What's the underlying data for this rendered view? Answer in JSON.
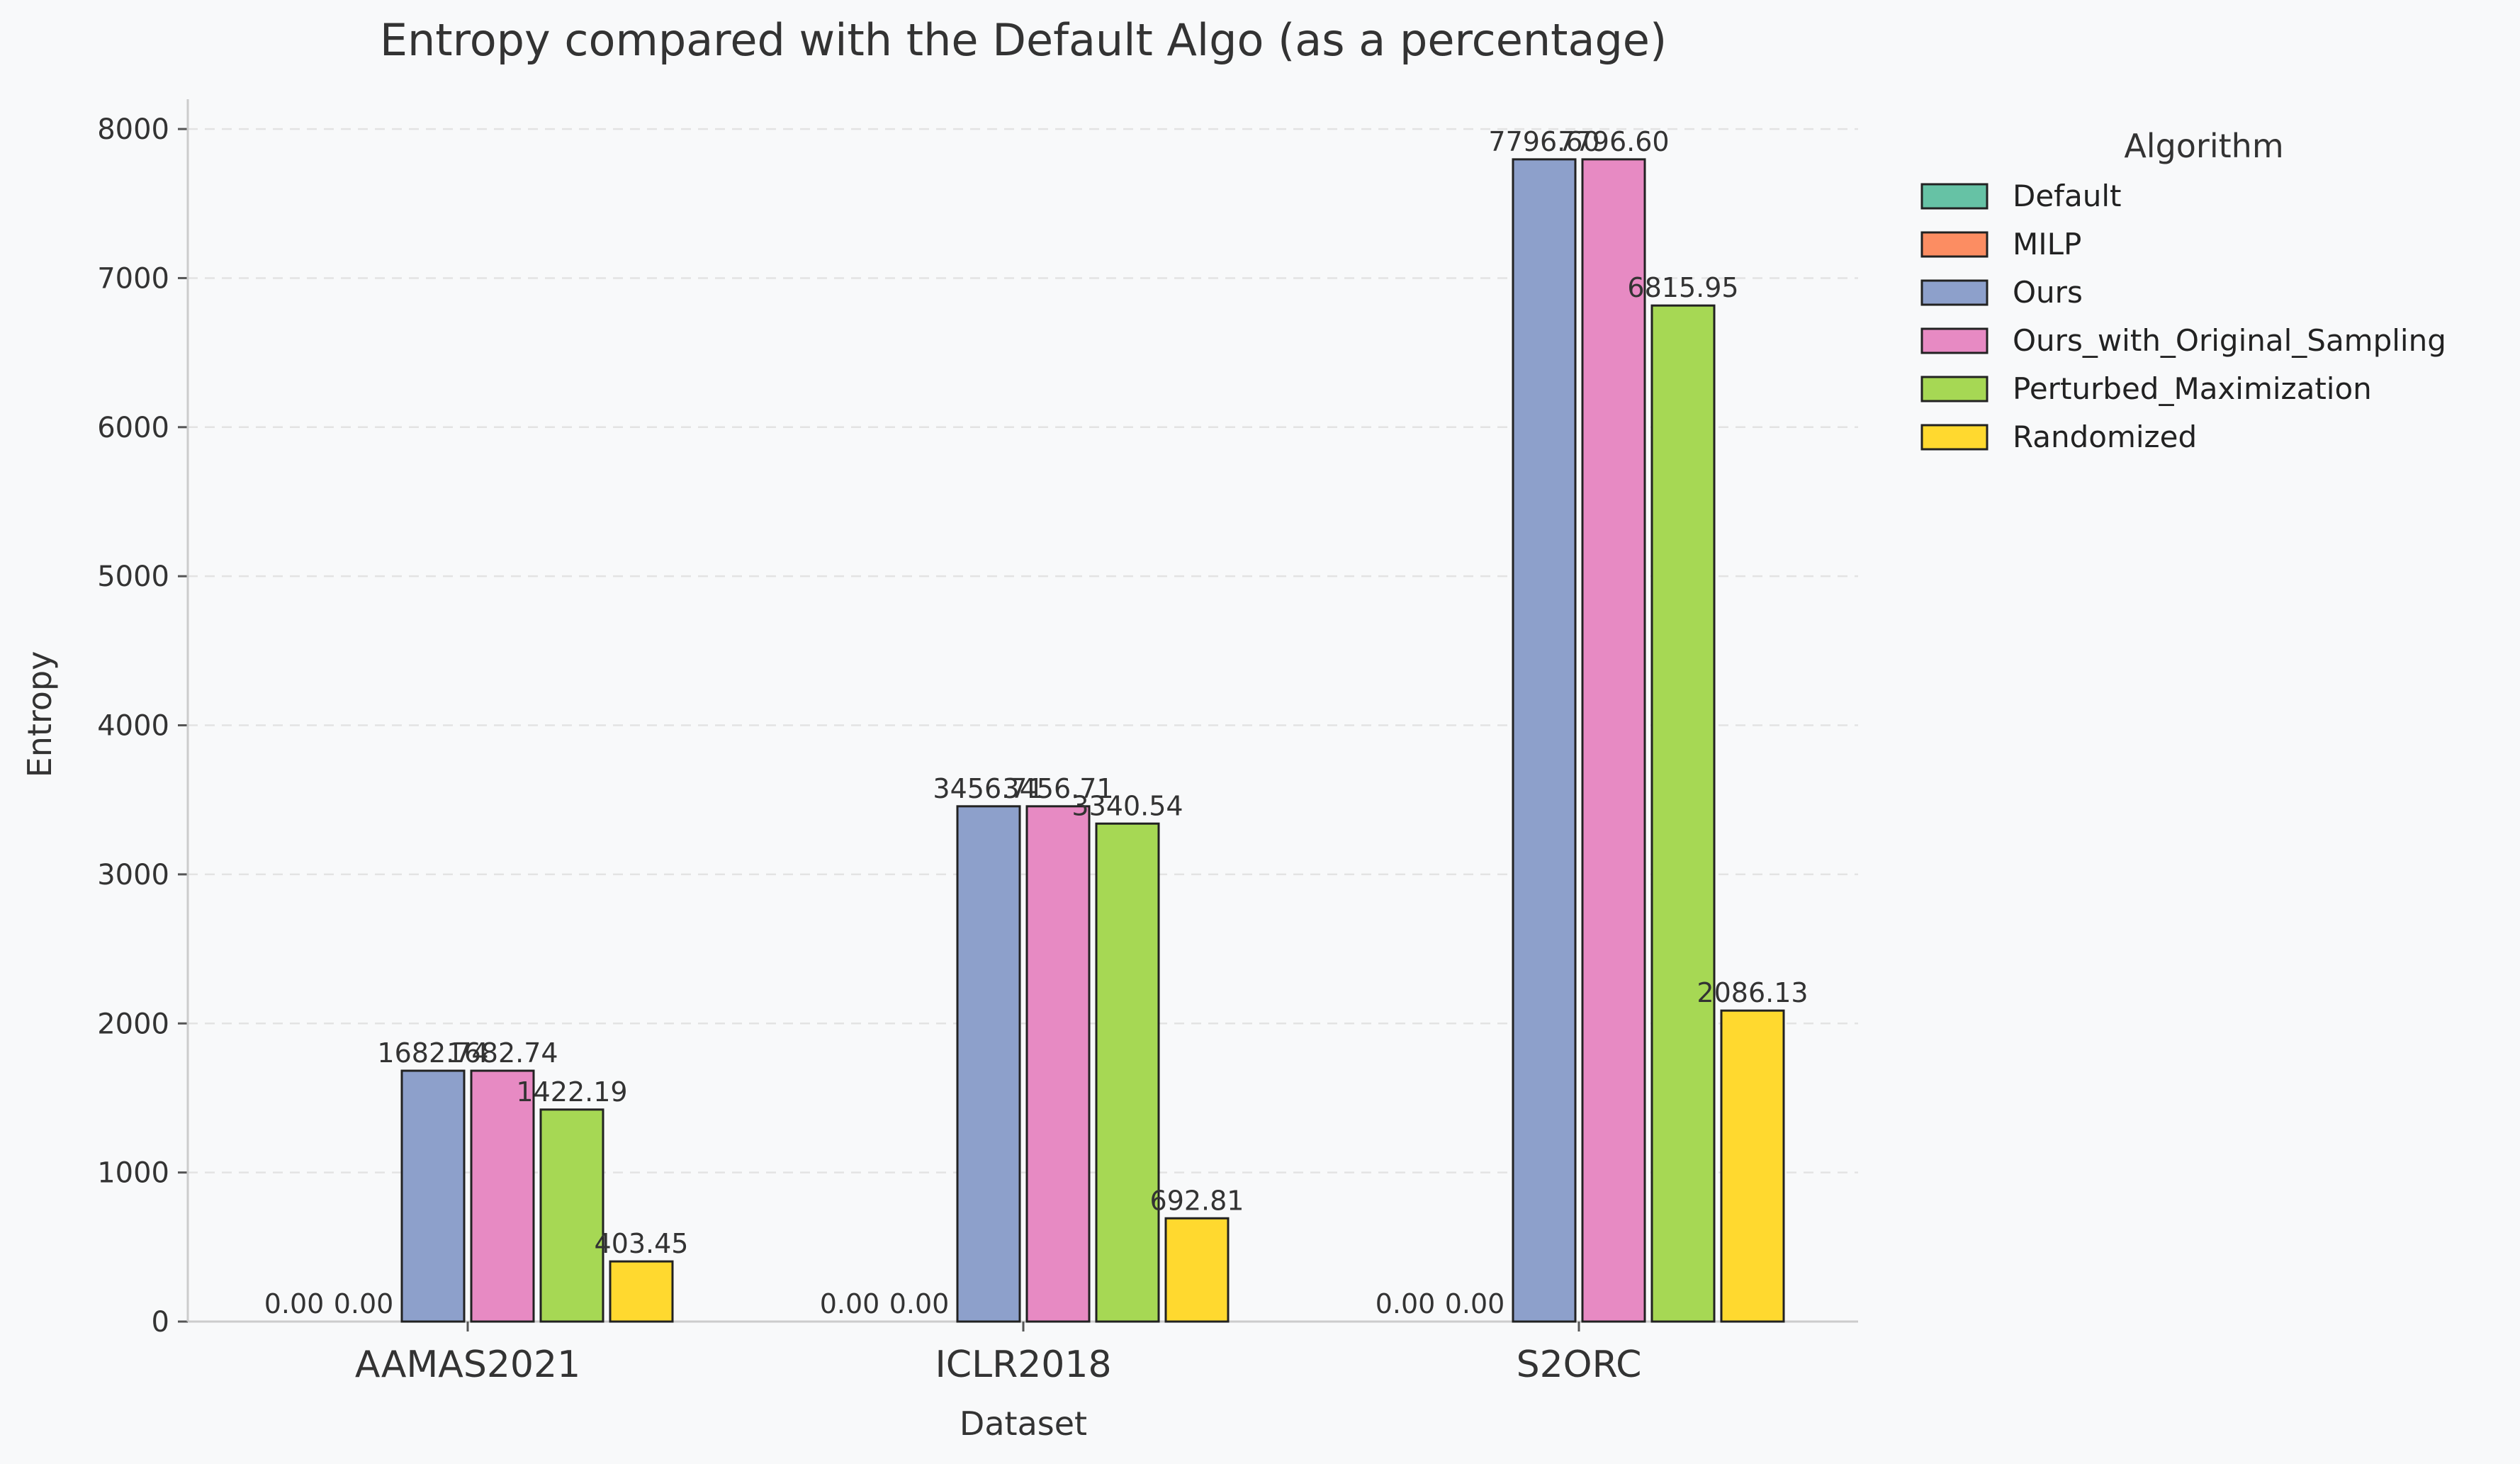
{
  "chart_data": {
    "type": "bar",
    "title": "Entropy compared with the Default Algo (as a percentage)",
    "xlabel": "Dataset",
    "ylabel": "Entropy",
    "categories": [
      "AAMAS2021",
      "ICLR2018",
      "S2ORC"
    ],
    "ylim": [
      0,
      8200
    ],
    "yticks": [
      0,
      1000,
      2000,
      3000,
      4000,
      5000,
      6000,
      7000,
      8000
    ],
    "grid": "y-dashed",
    "legend": {
      "title": "Algorithm",
      "placement": "outside-right"
    },
    "series": [
      {
        "name": "Default",
        "color": "#66c2a5",
        "values": [
          0.0,
          0.0,
          0.0
        ],
        "labels": [
          "0.00",
          "0.00",
          "0.00"
        ]
      },
      {
        "name": "MILP",
        "color": "#fc8d62",
        "values": [
          0.0,
          0.0,
          0.0
        ],
        "labels": [
          "0.00",
          "0.00",
          "0.00"
        ]
      },
      {
        "name": "Ours",
        "color": "#8da0cb",
        "values": [
          1682.74,
          3456.71,
          7796.6
        ],
        "labels": [
          "1682.74",
          "3456.71",
          "7796.60"
        ]
      },
      {
        "name": "Ours_with_Original_Sampling",
        "color": "#e78ac3",
        "values": [
          1682.74,
          3456.71,
          7796.6
        ],
        "labels": [
          "1682.74",
          "3456.71",
          "7796.60"
        ]
      },
      {
        "name": "Perturbed_Maximization",
        "color": "#a6d854",
        "values": [
          1422.19,
          3340.54,
          6815.95
        ],
        "labels": [
          "1422.19",
          "3340.54",
          "6815.95"
        ]
      },
      {
        "name": "Randomized",
        "color": "#ffd92f",
        "values": [
          403.45,
          692.81,
          2086.13
        ],
        "labels": [
          "403.45",
          "692.81",
          "2086.13"
        ]
      }
    ]
  }
}
